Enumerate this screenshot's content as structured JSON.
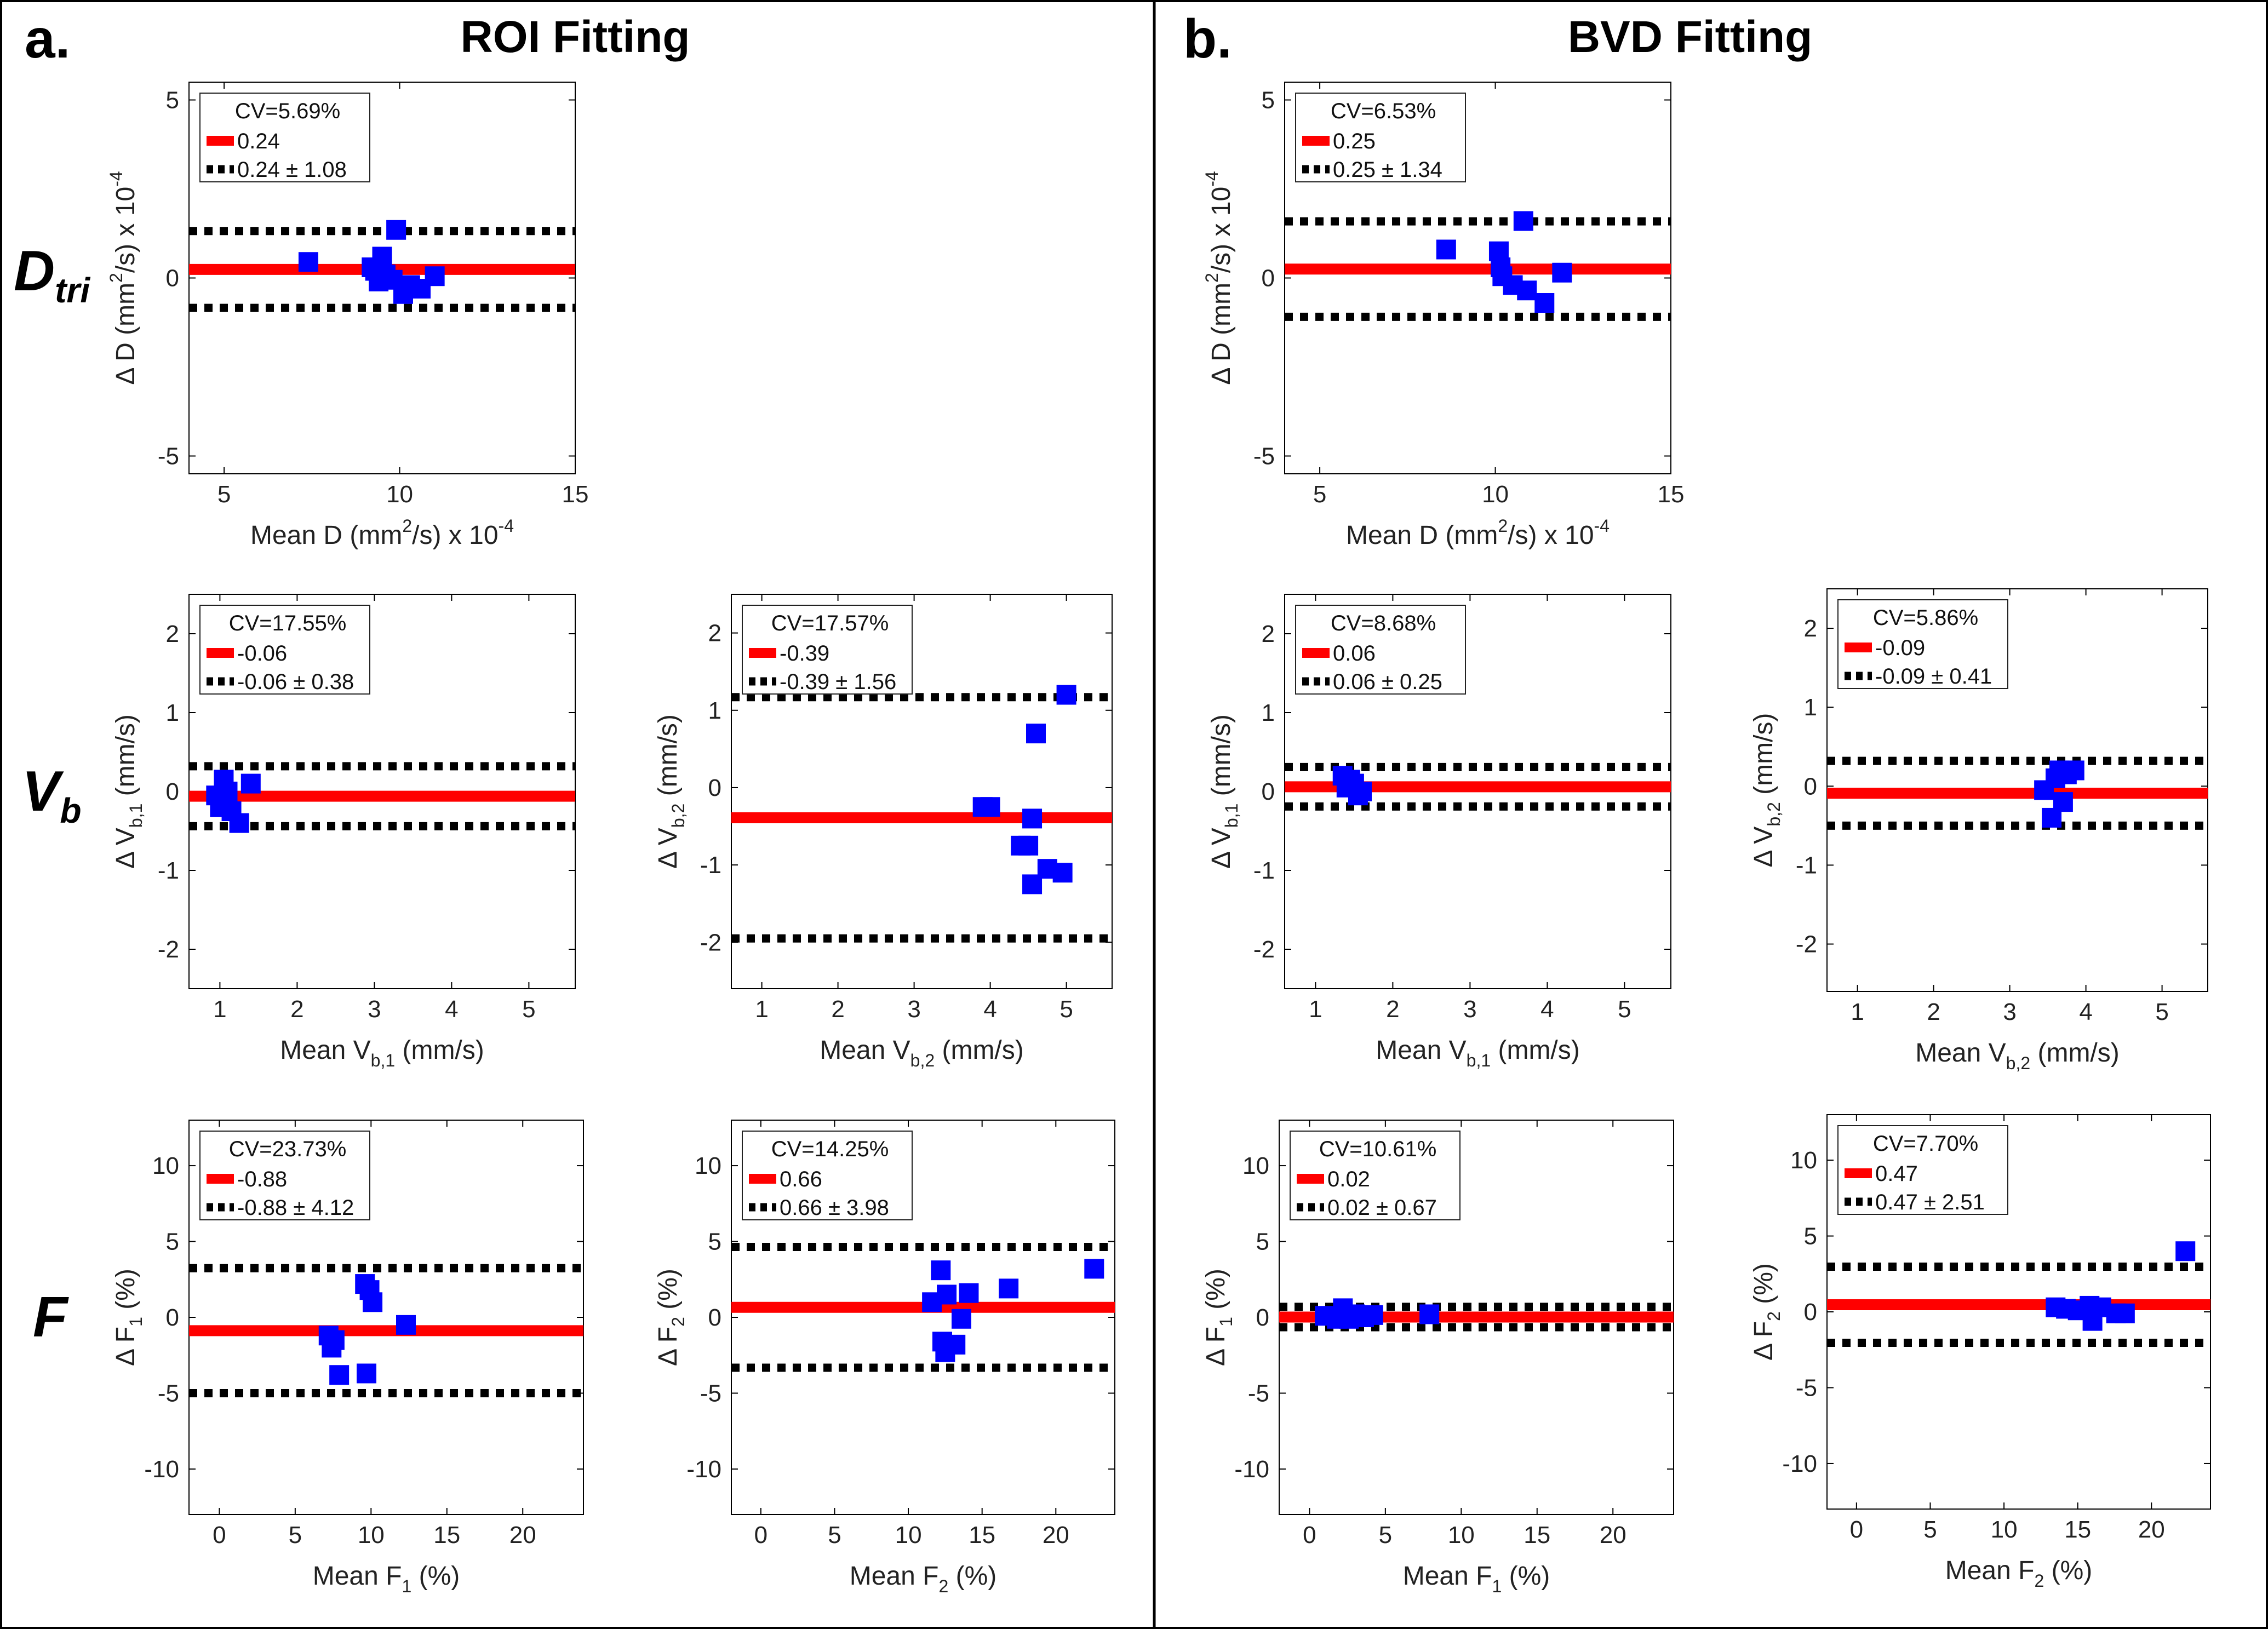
{
  "panels": [
    {
      "letter": "a.",
      "title": "ROI Fitting"
    },
    {
      "letter": "b.",
      "title": "BVD Fitting"
    }
  ],
  "row_labels": [
    {
      "main": "D",
      "sub": "tri"
    },
    {
      "main": "V",
      "sub": "b"
    },
    {
      "main": "F",
      "sub": ""
    }
  ],
  "colors": {
    "points": "#0000ff",
    "mean_line": "#ff0000",
    "limit_line": "#000000",
    "frame": "#000000"
  },
  "chart_data": [
    {
      "id": "roi-D",
      "type": "scatter",
      "panel": "a",
      "row": 0,
      "xlim": [
        4,
        15
      ],
      "ylim": [
        -5.5,
        5.5
      ],
      "xticks": [
        5,
        10,
        15
      ],
      "yticks": [
        -5,
        0,
        5
      ],
      "xlabel": {
        "pre": "Mean D (mm",
        "sup1": "2",
        "mid": "/s) x 10",
        "sup2": "-4",
        "sub": "",
        "post": ""
      },
      "ylabel": {
        "pre": "Δ D (mm",
        "sup1": "2",
        "mid": "/s) x 10",
        "sup2": "-4",
        "sub": "",
        "post": ""
      },
      "legend": {
        "cv": "CV=5.69%",
        "mean": "0.24",
        "limits": "0.24 ± 1.08"
      },
      "mean": 0.24,
      "loa": [
        -0.84,
        1.32
      ],
      "points": [
        [
          7.4,
          0.45
        ],
        [
          9.2,
          0.3
        ],
        [
          9.3,
          0.2
        ],
        [
          9.4,
          -0.1
        ],
        [
          9.5,
          0.6
        ],
        [
          9.6,
          0.1
        ],
        [
          9.8,
          -0.05
        ],
        [
          9.9,
          1.35
        ],
        [
          10.1,
          -0.45
        ],
        [
          10.3,
          -0.2
        ],
        [
          10.6,
          -0.3
        ],
        [
          11.0,
          0.05
        ]
      ]
    },
    {
      "id": "roi-Vb1",
      "type": "scatter",
      "panel": "a",
      "row": 1,
      "xlim": [
        0.6,
        5.6
      ],
      "ylim": [
        -2.5,
        2.5
      ],
      "xticks": [
        1,
        2,
        3,
        4,
        5
      ],
      "yticks": [
        -2,
        -1,
        0,
        1,
        2
      ],
      "xlabel": {
        "pre": "Mean V",
        "sup1": "",
        "mid": "",
        "sup2": "",
        "sub": "b,1",
        "post": " (mm/s)"
      },
      "ylabel": {
        "pre": "Δ V",
        "sup1": "",
        "mid": "",
        "sup2": "",
        "sub": "b,1",
        "post": " (mm/s)"
      },
      "legend": {
        "cv": "CV=17.55%",
        "mean": "-0.06",
        "limits": "-0.06 ± 0.38"
      },
      "mean": -0.06,
      "loa": [
        -0.44,
        0.32
      ],
      "points": [
        [
          0.95,
          -0.05
        ],
        [
          1.0,
          -0.2
        ],
        [
          1.05,
          0.15
        ],
        [
          1.1,
          0.0
        ],
        [
          1.15,
          -0.25
        ],
        [
          1.25,
          -0.4
        ],
        [
          1.4,
          0.1
        ]
      ]
    },
    {
      "id": "roi-Vb2",
      "type": "scatter",
      "panel": "a",
      "row": 1,
      "xlim": [
        0.6,
        5.6
      ],
      "ylim": [
        -2.6,
        2.5
      ],
      "xticks": [
        1,
        2,
        3,
        4,
        5
      ],
      "yticks": [
        -2,
        -1,
        0,
        1,
        2
      ],
      "xlabel": {
        "pre": "Mean V",
        "sup1": "",
        "mid": "",
        "sup2": "",
        "sub": "b,2",
        "post": " (mm/s)"
      },
      "ylabel": {
        "pre": "Δ V",
        "sup1": "",
        "mid": "",
        "sup2": "",
        "sub": "b,2",
        "post": " (mm/s)"
      },
      "legend": {
        "cv": "CV=17.57%",
        "mean": "-0.39",
        "limits": "-0.39 ± 1.56"
      },
      "mean": -0.39,
      "loa": [
        -1.95,
        1.17
      ],
      "points": [
        [
          3.9,
          -0.25
        ],
        [
          4.0,
          -0.25
        ],
        [
          4.4,
          -0.75
        ],
        [
          4.5,
          -0.75
        ],
        [
          4.55,
          -0.4
        ],
        [
          4.55,
          -1.25
        ],
        [
          4.6,
          0.7
        ],
        [
          4.75,
          -1.05
        ],
        [
          4.95,
          -1.1
        ],
        [
          5.0,
          1.2
        ]
      ]
    },
    {
      "id": "roi-F1",
      "type": "scatter",
      "panel": "a",
      "row": 2,
      "xlim": [
        -2,
        24
      ],
      "ylim": [
        -13,
        13
      ],
      "xticks": [
        0,
        5,
        10,
        15,
        20
      ],
      "yticks": [
        -10,
        -5,
        0,
        5,
        10
      ],
      "xlabel": {
        "pre": "Mean F",
        "sup1": "",
        "mid": "",
        "sup2": "",
        "sub": "1",
        "post": " (%)"
      },
      "ylabel": {
        "pre": "Δ F",
        "sup1": "",
        "mid": "",
        "sup2": "",
        "sub": "1",
        "post": " (%)"
      },
      "legend": {
        "cv": "CV=23.73%",
        "mean": "-0.88",
        "limits": "-0.88 ± 4.12"
      },
      "mean": -0.88,
      "loa": [
        -5.0,
        3.24
      ],
      "points": [
        [
          7.2,
          -1.2
        ],
        [
          7.4,
          -2.0
        ],
        [
          7.6,
          -1.5
        ],
        [
          7.9,
          -3.8
        ],
        [
          9.6,
          2.2
        ],
        [
          9.7,
          -3.7
        ],
        [
          9.9,
          1.8
        ],
        [
          10.1,
          1.0
        ],
        [
          12.3,
          -0.5
        ]
      ]
    },
    {
      "id": "roi-F2",
      "type": "scatter",
      "panel": "a",
      "row": 2,
      "xlim": [
        -2,
        24
      ],
      "ylim": [
        -13,
        13
      ],
      "xticks": [
        0,
        5,
        10,
        15,
        20
      ],
      "yticks": [
        -10,
        -5,
        0,
        5,
        10
      ],
      "xlabel": {
        "pre": "Mean F",
        "sup1": "",
        "mid": "",
        "sup2": "",
        "sub": "2",
        "post": " (%)"
      },
      "ylabel": {
        "pre": "Δ F",
        "sup1": "",
        "mid": "",
        "sup2": "",
        "sub": "2",
        "post": " (%)"
      },
      "legend": {
        "cv": "CV=14.25%",
        "mean": "0.66",
        "limits": "0.66 ± 3.98"
      },
      "mean": 0.66,
      "loa": [
        -3.32,
        4.64
      ],
      "points": [
        [
          11.6,
          1.0
        ],
        [
          12.2,
          3.1
        ],
        [
          12.3,
          -1.6
        ],
        [
          12.5,
          -2.3
        ],
        [
          12.6,
          1.5
        ],
        [
          13.2,
          -1.8
        ],
        [
          13.6,
          -0.1
        ],
        [
          14.1,
          1.6
        ],
        [
          16.8,
          1.9
        ],
        [
          22.6,
          3.2
        ]
      ]
    },
    {
      "id": "bvd-D",
      "type": "scatter",
      "panel": "b",
      "row": 0,
      "xlim": [
        4,
        15
      ],
      "ylim": [
        -5.5,
        5.5
      ],
      "xticks": [
        5,
        10,
        15
      ],
      "yticks": [
        -5,
        0,
        5
      ],
      "xlabel": {
        "pre": "Mean D (mm",
        "sup1": "2",
        "mid": "/s) x 10",
        "sup2": "-4",
        "sub": "",
        "post": ""
      },
      "ylabel": {
        "pre": "Δ D (mm",
        "sup1": "2",
        "mid": "/s) x 10",
        "sup2": "-4",
        "sub": "",
        "post": ""
      },
      "legend": {
        "cv": "CV=6.53%",
        "mean": "0.25",
        "limits": "0.25 ± 1.34"
      },
      "mean": 0.25,
      "loa": [
        -1.09,
        1.59
      ],
      "points": [
        [
          8.6,
          0.8
        ],
        [
          10.1,
          0.75
        ],
        [
          10.15,
          0.3
        ],
        [
          10.2,
          0.05
        ],
        [
          10.5,
          -0.2
        ],
        [
          10.8,
          1.6
        ],
        [
          10.9,
          -0.35
        ],
        [
          11.4,
          -0.7
        ],
        [
          11.9,
          0.15
        ]
      ]
    },
    {
      "id": "bvd-Vb1",
      "type": "scatter",
      "panel": "b",
      "row": 1,
      "xlim": [
        0.6,
        5.6
      ],
      "ylim": [
        -2.5,
        2.5
      ],
      "xticks": [
        1,
        2,
        3,
        4,
        5
      ],
      "yticks": [
        -2,
        -1,
        0,
        1,
        2
      ],
      "xlabel": {
        "pre": "Mean V",
        "sup1": "",
        "mid": "",
        "sup2": "",
        "sub": "b,1",
        "post": " (mm/s)"
      },
      "ylabel": {
        "pre": "Δ V",
        "sup1": "",
        "mid": "",
        "sup2": "",
        "sub": "b,1",
        "post": " (mm/s)"
      },
      "legend": {
        "cv": "CV=8.68%",
        "mean": "0.06",
        "limits": "0.06 ± 0.25"
      },
      "mean": 0.06,
      "loa": [
        -0.19,
        0.31
      ],
      "points": [
        [
          1.35,
          0.2
        ],
        [
          1.4,
          0.05
        ],
        [
          1.45,
          0.15
        ],
        [
          1.5,
          0.1
        ],
        [
          1.55,
          -0.05
        ],
        [
          1.6,
          0.0
        ]
      ]
    },
    {
      "id": "bvd-Vb2",
      "type": "scatter",
      "panel": "b",
      "row": 1,
      "xlim": [
        0.6,
        5.6
      ],
      "ylim": [
        -2.6,
        2.5
      ],
      "xticks": [
        1,
        2,
        3,
        4,
        5
      ],
      "yticks": [
        -2,
        -1,
        0,
        1,
        2
      ],
      "xlabel": {
        "pre": "Mean V",
        "sup1": "",
        "mid": "",
        "sup2": "",
        "sub": "b,2",
        "post": " (mm/s)"
      },
      "ylabel": {
        "pre": "Δ V",
        "sup1": "",
        "mid": "",
        "sup2": "",
        "sub": "b,2",
        "post": " (mm/s)"
      },
      "legend": {
        "cv": "CV=5.86%",
        "mean": "-0.09",
        "limits": "-0.09 ± 0.41"
      },
      "mean": -0.09,
      "loa": [
        -0.5,
        0.32
      ],
      "points": [
        [
          3.45,
          -0.05
        ],
        [
          3.55,
          -0.4
        ],
        [
          3.6,
          0.1
        ],
        [
          3.65,
          0.2
        ],
        [
          3.7,
          -0.2
        ],
        [
          3.75,
          0.15
        ],
        [
          3.85,
          0.2
        ]
      ]
    },
    {
      "id": "bvd-F1",
      "type": "scatter",
      "panel": "b",
      "row": 2,
      "xlim": [
        -2,
        24
      ],
      "ylim": [
        -13,
        13
      ],
      "xticks": [
        0,
        5,
        10,
        15,
        20
      ],
      "yticks": [
        -10,
        -5,
        0,
        5,
        10
      ],
      "xlabel": {
        "pre": "Mean F",
        "sup1": "",
        "mid": "",
        "sup2": "",
        "sub": "1",
        "post": " (%)"
      },
      "ylabel": {
        "pre": "Δ F",
        "sup1": "",
        "mid": "",
        "sup2": "",
        "sub": "1",
        "post": " (%)"
      },
      "legend": {
        "cv": "CV=10.61%",
        "mean": "0.02",
        "limits": "0.02 ± 0.67"
      },
      "mean": 0.02,
      "loa": [
        -0.65,
        0.69
      ],
      "points": [
        [
          1.0,
          0.1
        ],
        [
          1.8,
          -0.1
        ],
        [
          2.2,
          0.6
        ],
        [
          2.6,
          -0.1
        ],
        [
          3.0,
          0.2
        ],
        [
          3.6,
          0.0
        ],
        [
          4.2,
          0.15
        ],
        [
          7.9,
          0.2
        ]
      ]
    },
    {
      "id": "bvd-F2",
      "type": "scatter",
      "panel": "b",
      "row": 2,
      "xlim": [
        -2,
        24
      ],
      "ylim": [
        -13,
        13
      ],
      "xticks": [
        0,
        5,
        10,
        15,
        20
      ],
      "yticks": [
        -10,
        -5,
        0,
        5,
        10
      ],
      "xlabel": {
        "pre": "Mean F",
        "sup1": "",
        "mid": "",
        "sup2": "",
        "sub": "2",
        "post": " (%)"
      },
      "ylabel": {
        "pre": "Δ F",
        "sup1": "",
        "mid": "",
        "sup2": "",
        "sub": "2",
        "post": " (%)"
      },
      "legend": {
        "cv": "CV=7.70%",
        "mean": "0.47",
        "limits": "0.47 ± 2.51"
      },
      "mean": 0.47,
      "loa": [
        -2.04,
        2.98
      ],
      "points": [
        [
          13.5,
          0.3
        ],
        [
          14.2,
          0.2
        ],
        [
          15.0,
          0.1
        ],
        [
          15.8,
          0.4
        ],
        [
          16.0,
          -0.6
        ],
        [
          16.6,
          0.3
        ],
        [
          17.6,
          -0.1
        ],
        [
          18.2,
          -0.1
        ],
        [
          22.3,
          4.0
        ]
      ]
    }
  ]
}
